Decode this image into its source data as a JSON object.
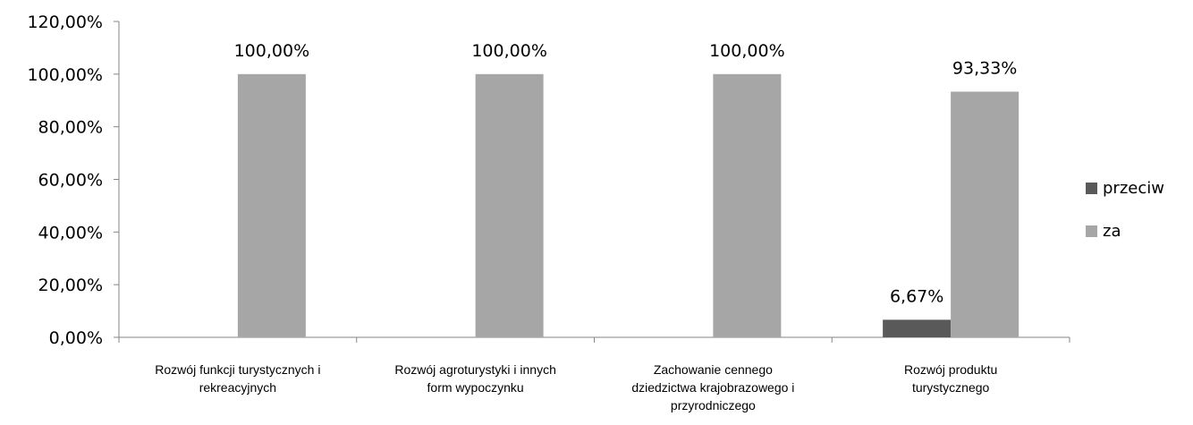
{
  "chart_data": {
    "type": "bar",
    "title": "",
    "categories": [
      [
        "Rozwój funkcji turystycznych i",
        "rekreacyjnych"
      ],
      [
        "Rozwój agroturystyki i innych",
        "form wypoczynku"
      ],
      [
        "Zachowanie cennego",
        "dziedzictwa krajobrazowego i",
        "przyrodniczego"
      ],
      [
        "Rozwój produktu",
        "turystycznego"
      ]
    ],
    "series": [
      {
        "name": "przeciw",
        "color": "#595959",
        "values": [
          0,
          0,
          0,
          6.67
        ],
        "labels": [
          "",
          "",
          "",
          "6,67%"
        ]
      },
      {
        "name": "za",
        "color": "#a6a6a6",
        "values": [
          100,
          100,
          100,
          93.33
        ],
        "labels": [
          "100,00%",
          "100,00%",
          "100,00%",
          "93,33%"
        ]
      }
    ],
    "ylim": [
      0,
      120
    ],
    "yticks": [
      0,
      20,
      40,
      60,
      80,
      100,
      120
    ],
    "ytick_labels": [
      "0,00%",
      "20,00%",
      "40,00%",
      "60,00%",
      "80,00%",
      "100,00%",
      "120,00%"
    ],
    "legend_position": "right",
    "grid": false
  }
}
